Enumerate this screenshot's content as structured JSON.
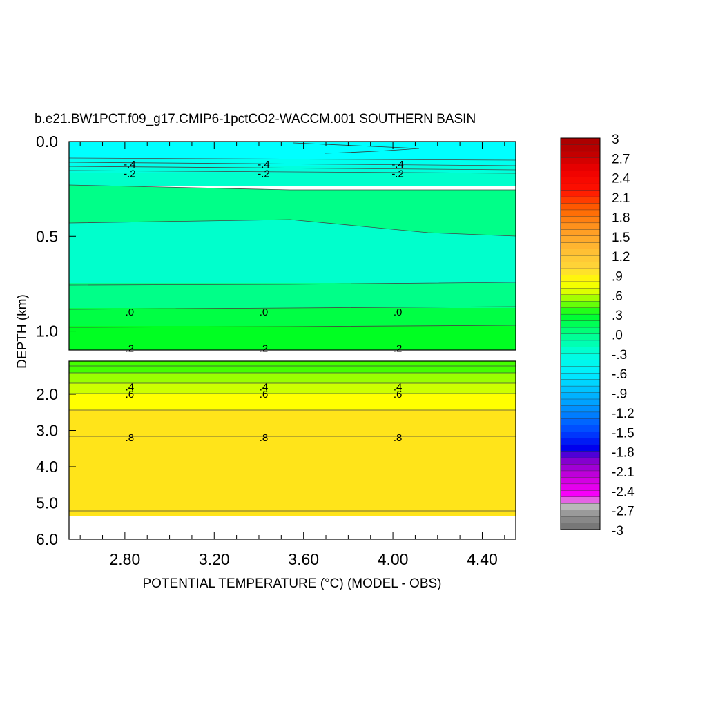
{
  "chart_data": {
    "type": "heatmap",
    "title": "b.e21.BW1PCT.f09_g17.CMIP6-1pctCO2-WACCM.001 SOUTHERN BASIN",
    "xlabel": "POTENTIAL TEMPERATURE (°C) (MODEL - OBS)",
    "ylabel": "DEPTH (km)",
    "xlim": [
      2.55,
      4.55
    ],
    "x_ticks": [
      "2.80",
      "3.20",
      "3.60",
      "4.00",
      "4.40"
    ],
    "y_ticks_upper": [
      "0.0",
      "0.5",
      "1.0"
    ],
    "y_ticks_lower": [
      "2.0",
      "3.0",
      "4.0",
      "5.0",
      "6.0"
    ],
    "upper_panel_ylim": [
      0.0,
      1.1
    ],
    "lower_panel_ylim": [
      1.5,
      6.0
    ],
    "contour_labels": [
      {
        "text": "-.4",
        "x": [
          2.8,
          3.4,
          4.0
        ],
        "depth": 0.12
      },
      {
        "text": "-.2",
        "x": [
          2.8,
          3.4,
          4.0
        ],
        "depth": 0.17
      },
      {
        "text": ".0",
        "x": [
          2.8,
          3.4,
          4.0
        ],
        "depth": 0.9
      },
      {
        "text": ".2",
        "x": [
          2.8,
          3.4,
          4.0
        ],
        "depth": 1.09
      },
      {
        "text": ".4",
        "x": [
          2.8,
          3.4,
          4.0
        ],
        "depth": 1.8
      },
      {
        "text": ".6",
        "x": [
          2.8,
          3.4,
          4.0
        ],
        "depth": 2.0
      },
      {
        "text": ".8",
        "x": [
          2.8,
          3.4,
          4.0
        ],
        "depth": 3.2
      }
    ],
    "colorbar": {
      "labels": [
        "3",
        "2.7",
        "2.4",
        "2.1",
        "1.8",
        "1.5",
        "1.2",
        ".9",
        ".6",
        ".3",
        ".0",
        "-.3",
        "-.6",
        "-.9",
        "-1.2",
        "-1.5",
        "-1.8",
        "-2.1",
        "-2.4",
        "-2.7",
        "-3"
      ],
      "range": [
        -3,
        3
      ]
    },
    "colors": {
      "cyan_top": "#00ffff",
      "teal": "#00ffcc",
      "green_light": "#00ff88",
      "green_mid": "#00ff44",
      "green": "#00ff22",
      "lime": "#44ff00",
      "yellow_green": "#bbff00",
      "yellow": "#ffff00",
      "gold": "#ffe41a"
    }
  }
}
